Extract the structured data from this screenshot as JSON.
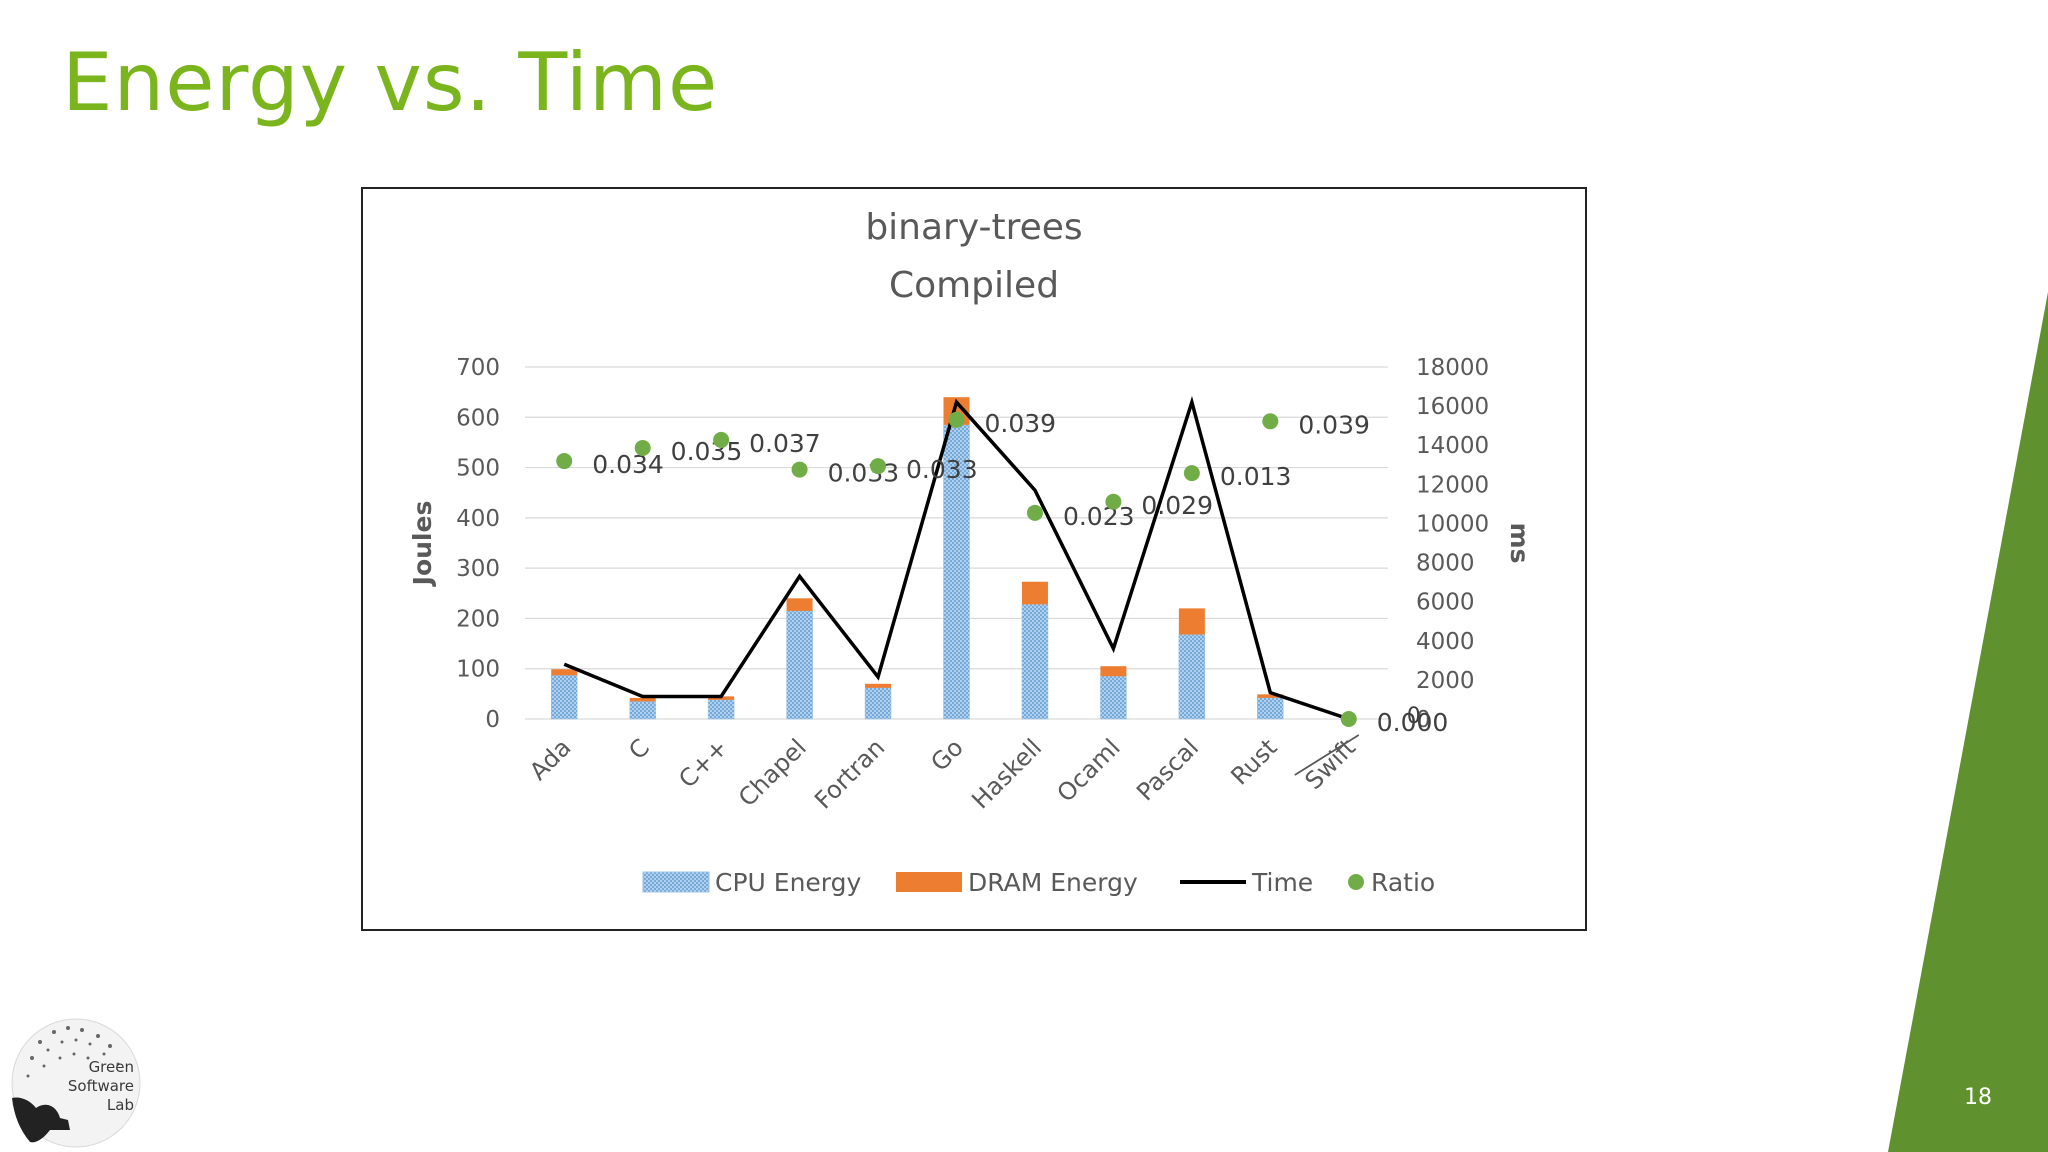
{
  "slide": {
    "title": "Energy vs. Time",
    "page_number": "18",
    "logo_text_1": "Green",
    "logo_text_2": "Software",
    "logo_text_3": "Lab",
    "accent_color": "#7ab51d",
    "sidebar_color": "#5f922e"
  },
  "chart_data": {
    "type": "bar",
    "title": "binary-trees",
    "subtitle": "Compiled",
    "categories": [
      "Ada",
      "C",
      "C++",
      "Chapel",
      "Fortran",
      "Go",
      "Haskell",
      "Ocaml",
      "Pascal",
      "Rust",
      "Swift"
    ],
    "ylabel": "Joules",
    "y2label": "ms",
    "ylim": [
      0,
      700
    ],
    "y_ticks": [
      "0",
      "100",
      "200",
      "300",
      "400",
      "500",
      "600",
      "700"
    ],
    "y2lim": [
      0,
      18000
    ],
    "y2_ticks": [
      "0",
      "2000",
      "4000",
      "6000",
      "8000",
      "10000",
      "12000",
      "14000",
      "16000",
      "18000"
    ],
    "series": [
      {
        "name": "CPU Energy",
        "type": "stacked-bar",
        "color": "#9dc3e6",
        "values": [
          87,
          35,
          38,
          215,
          62,
          585,
          228,
          85,
          168,
          42,
          0
        ]
      },
      {
        "name": "DRAM Energy",
        "type": "stacked-bar",
        "color": "#ed7d31",
        "values": [
          12,
          7,
          7,
          25,
          8,
          55,
          45,
          20,
          52,
          7,
          0
        ]
      },
      {
        "name": "Time",
        "type": "line",
        "color": "#000000",
        "axis": "secondary",
        "values": [
          2800,
          1150,
          1150,
          7300,
          2150,
          16200,
          11700,
          3600,
          16200,
          1350,
          0
        ]
      },
      {
        "name": "Ratio",
        "type": "scatter",
        "color": "#70ad47",
        "positions": [
          513,
          539,
          555,
          496,
          503,
          595,
          410,
          432,
          489,
          592,
          0
        ],
        "values": [
          "0.034",
          "0.035",
          "0.037",
          "0.033",
          "0.033",
          "0.039",
          "0.023",
          "0.029",
          "0.013",
          "0.039",
          "0.000"
        ]
      }
    ],
    "extra_label": "0",
    "legend": {
      "position": "bottom",
      "items": [
        "CPU Energy",
        "DRAM Energy",
        "Time",
        "Ratio"
      ]
    },
    "grid": true
  }
}
